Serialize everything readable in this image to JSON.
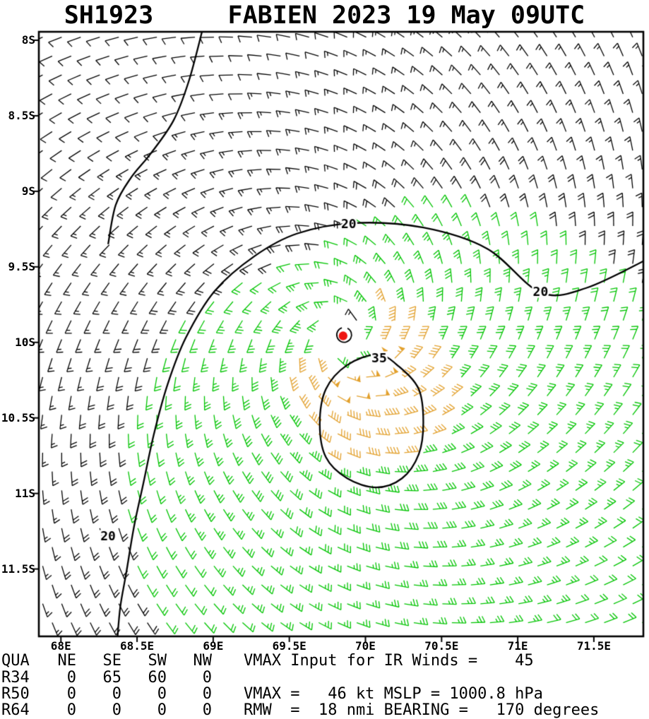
{
  "title": "SH1923     FABIEN 2023 19 May 09UTC",
  "chart_data": {
    "type": "wind_barb_map",
    "storm": {
      "atcf_id": "SH1923",
      "name": "FABIEN",
      "year": "2023",
      "valid_time": "19 May 09UTC"
    },
    "vmax_kt": 46,
    "mslp_hpa": 1000.8,
    "rmw_nmi": 18,
    "bearing_deg": 170,
    "vmax_input_ir_kt": 45,
    "x_axis": {
      "tick_labels": [
        "68E",
        "68.5E",
        "69E",
        "69.5E",
        "70E",
        "70.5E",
        "71E",
        "71.5E"
      ],
      "tick_lons": [
        68,
        68.5,
        69,
        69.5,
        70,
        70.5,
        71,
        71.5
      ],
      "lon_range": [
        67.855,
        71.825
      ]
    },
    "y_axis": {
      "tick_labels": [
        "8S",
        "8.5S",
        "9S",
        "9.5S",
        "10S",
        "10.5S",
        "11S",
        "11.5S"
      ],
      "tick_lats": [
        8,
        8.5,
        9,
        9.5,
        10,
        10.5,
        11,
        11.5
      ],
      "lat_range": [
        7.944,
        11.946
      ]
    },
    "center": {
      "lon": 69.87,
      "lat": -9.97
    },
    "center_symbol": {
      "lon": 69.86,
      "lat": -9.95
    },
    "barb_colors": {
      "below_20kt": "#000000",
      "kt20_34": "#00c400",
      "kt35_plus": "#e2a02c"
    },
    "isotach_labels": [
      {
        "value": "20",
        "lon": 71.15,
        "lat": -9.67
      },
      {
        "value": "20",
        "lon": 69.89,
        "lat": -9.22
      },
      {
        "value": "20",
        "lon": 68.31,
        "lat": -11.29
      },
      {
        "value": "35",
        "lon": 70.09,
        "lat": -10.11
      }
    ],
    "isotach_contours": [
      {
        "value": 20,
        "closed": false,
        "points": [
          [
            71.85,
            -9.45
          ],
          [
            71.45,
            -9.64
          ],
          [
            71.15,
            -9.67
          ],
          [
            70.8,
            -9.38
          ],
          [
            70.38,
            -9.24
          ],
          [
            69.92,
            -9.21
          ],
          [
            69.55,
            -9.28
          ],
          [
            69.27,
            -9.43
          ],
          [
            69.01,
            -9.66
          ],
          [
            68.82,
            -9.97
          ],
          [
            68.7,
            -10.28
          ],
          [
            68.61,
            -10.61
          ],
          [
            68.54,
            -10.94
          ],
          [
            68.48,
            -11.22
          ],
          [
            68.43,
            -11.52
          ],
          [
            68.39,
            -11.75
          ],
          [
            68.37,
            -11.97
          ]
        ]
      },
      {
        "value": 20,
        "closed": false,
        "points": [
          [
            68.93,
            -7.93
          ],
          [
            68.84,
            -8.27
          ],
          [
            68.74,
            -8.53
          ],
          [
            68.59,
            -8.75
          ],
          [
            68.46,
            -8.91
          ],
          [
            68.36,
            -9.09
          ],
          [
            68.31,
            -9.35
          ]
        ]
      },
      {
        "value": 35,
        "closed": true,
        "points": [
          [
            70.08,
            -10.08
          ],
          [
            69.88,
            -10.15
          ],
          [
            69.74,
            -10.31
          ],
          [
            69.7,
            -10.54
          ],
          [
            69.74,
            -10.76
          ],
          [
            69.88,
            -10.9
          ],
          [
            70.07,
            -10.96
          ],
          [
            70.24,
            -10.9
          ],
          [
            70.35,
            -10.74
          ],
          [
            70.38,
            -10.53
          ],
          [
            70.35,
            -10.31
          ],
          [
            70.22,
            -10.16
          ]
        ]
      }
    ],
    "wind_model": {
      "hemisphere": "S",
      "rotation": "clockwise",
      "grid_step_deg": 0.125,
      "inflow_deg": 22,
      "rmw_deg": 0.3,
      "eye_gap_deg": 0.13,
      "asym_amp": 0.35,
      "asym_dir_deg": -65,
      "green_min_kt": 20,
      "orange_min_kt": 36
    }
  },
  "stats": {
    "header": {
      "label": "QUA",
      "cols": [
        "NE",
        "SE",
        "SW",
        "NW"
      ],
      "note": "VMAX Input for IR Winds =    45"
    },
    "rows": [
      {
        "label": "R34",
        "values": [
          "0",
          "65",
          "60",
          "0"
        ],
        "note": ""
      },
      {
        "label": "R50",
        "values": [
          "0",
          "0",
          "0",
          "0"
        ],
        "note": "VMAX =   46 kt MSLP = 1000.8 hPa"
      },
      {
        "label": "R64",
        "values": [
          "0",
          "0",
          "0",
          "0"
        ],
        "note": "RMW  =  18 nmi BEARING =   170 degrees"
      }
    ]
  }
}
